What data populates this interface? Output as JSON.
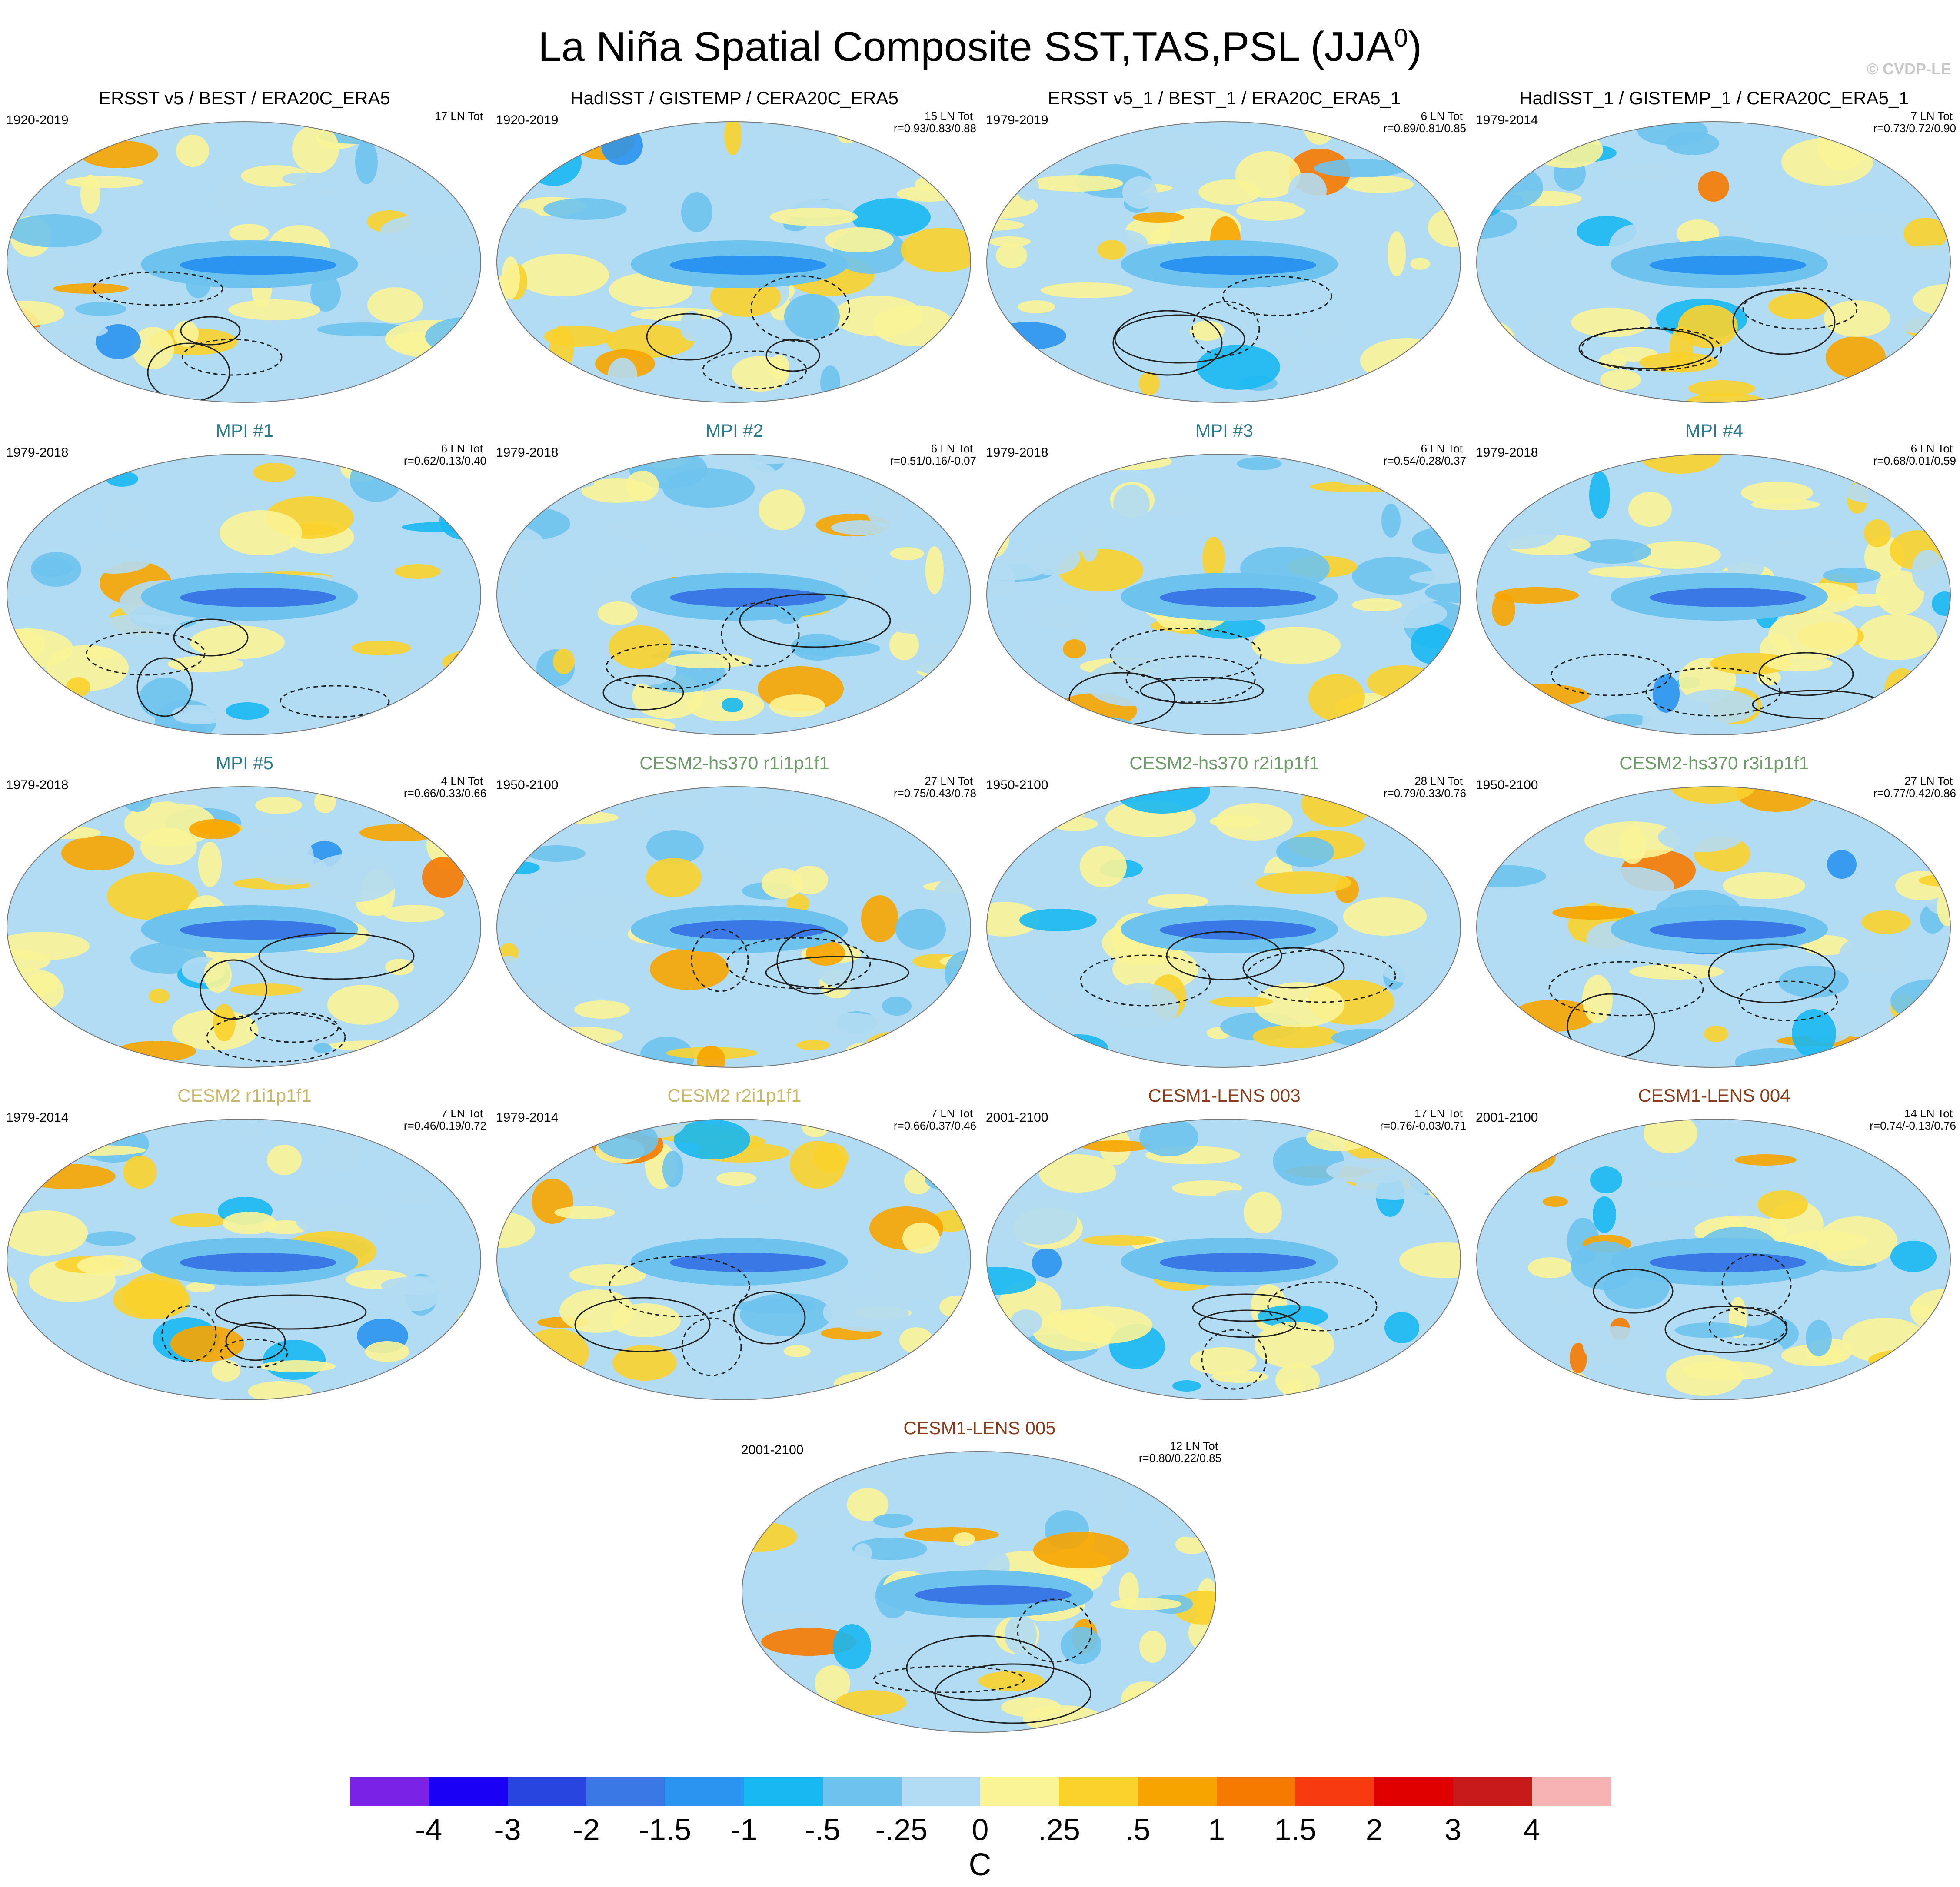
{
  "title": "La Niña Spatial Composite SST,TAS,PSL (JJA",
  "title_superscript": "0",
  "title_suffix": ")",
  "copyright": "© CVDP-LE",
  "panels": [
    {
      "title": "ERSST v5 / BEST / ERA20C_ERA5",
      "title_color": "#000000",
      "years": "1920-2019",
      "count": "17 LN Tot",
      "corr": ""
    },
    {
      "title": "HadISST / GISTEMP / CERA20C_ERA5",
      "title_color": "#000000",
      "years": "1920-2019",
      "count": "15 LN Tot",
      "corr": "r=0.93/0.83/0.88"
    },
    {
      "title": "ERSST v5_1 / BEST_1 / ERA20C_ERA5_1",
      "title_color": "#000000",
      "years": "1979-2019",
      "count": "6 LN Tot",
      "corr": "r=0.89/0.81/0.85"
    },
    {
      "title": "HadISST_1 / GISTEMP_1 / CERA20C_ERA5_1",
      "title_color": "#000000",
      "years": "1979-2014",
      "count": "7 LN Tot",
      "corr": "r=0.73/0.72/0.90"
    },
    {
      "title": "MPI #1",
      "title_color": "#2a7a8c",
      "years": "1979-2018",
      "count": "6 LN Tot",
      "corr": "r=0.62/0.13/0.40"
    },
    {
      "title": "MPI #2",
      "title_color": "#2a7a8c",
      "years": "1979-2018",
      "count": "6 LN Tot",
      "corr": "r=0.51/0.16/-0.07"
    },
    {
      "title": "MPI #3",
      "title_color": "#2a7a8c",
      "years": "1979-2018",
      "count": "6 LN Tot",
      "corr": "r=0.54/0.28/0.37"
    },
    {
      "title": "MPI #4",
      "title_color": "#2a7a8c",
      "years": "1979-2018",
      "count": "6 LN Tot",
      "corr": "r=0.68/0.01/0.59"
    },
    {
      "title": "MPI #5",
      "title_color": "#2a7a8c",
      "years": "1979-2018",
      "count": "4 LN Tot",
      "corr": "r=0.66/0.33/0.66"
    },
    {
      "title": "CESM2-hs370 r1i1p1f1",
      "title_color": "#6f9a6a",
      "years": "1950-2100",
      "count": "27 LN Tot",
      "corr": "r=0.75/0.43/0.78"
    },
    {
      "title": "CESM2-hs370 r2i1p1f1",
      "title_color": "#6f9a6a",
      "years": "1950-2100",
      "count": "28 LN Tot",
      "corr": "r=0.79/0.33/0.76"
    },
    {
      "title": "CESM2-hs370 r3i1p1f1",
      "title_color": "#6f9a6a",
      "years": "1950-2100",
      "count": "27 LN Tot",
      "corr": "r=0.77/0.42/0.86"
    },
    {
      "title": "CESM2 r1i1p1f1",
      "title_color": "#c9b86a",
      "years": "1979-2014",
      "count": "7 LN Tot",
      "corr": "r=0.46/0.19/0.72"
    },
    {
      "title": "CESM2 r2i1p1f1",
      "title_color": "#c9b86a",
      "years": "1979-2014",
      "count": "7 LN Tot",
      "corr": "r=0.66/0.37/0.46"
    },
    {
      "title": "CESM1-LENS 003",
      "title_color": "#8b3a1a",
      "years": "2001-2100",
      "count": "17 LN Tot",
      "corr": "r=0.76/-0.03/0.71"
    },
    {
      "title": "CESM1-LENS 004",
      "title_color": "#8b3a1a",
      "years": "2001-2100",
      "count": "14 LN Tot",
      "corr": "r=0.74/-0.13/0.76"
    },
    {
      "title": "CESM1-LENS 005",
      "title_color": "#8b3a1a",
      "years": "2001-2100",
      "count": "12 LN Tot",
      "corr": "r=0.80/0.22/0.85"
    }
  ],
  "colorbar": {
    "colors": [
      "#7a22e6",
      "#1a00f5",
      "#2845e0",
      "#3a78e6",
      "#2a94f0",
      "#18b8f2",
      "#6ec3ee",
      "#b2dcf3",
      "#fbf497",
      "#fbd22c",
      "#f7a400",
      "#f77a00",
      "#f73a10",
      "#e00000",
      "#c81a1a",
      "#f7b3b3"
    ],
    "labels": [
      "-4",
      "-3",
      "-2",
      "-1.5",
      "-1",
      "-.5",
      "-.25",
      "0",
      ".25",
      ".5",
      "1",
      "1.5",
      "2",
      "3",
      "4"
    ],
    "unit": "C"
  }
}
